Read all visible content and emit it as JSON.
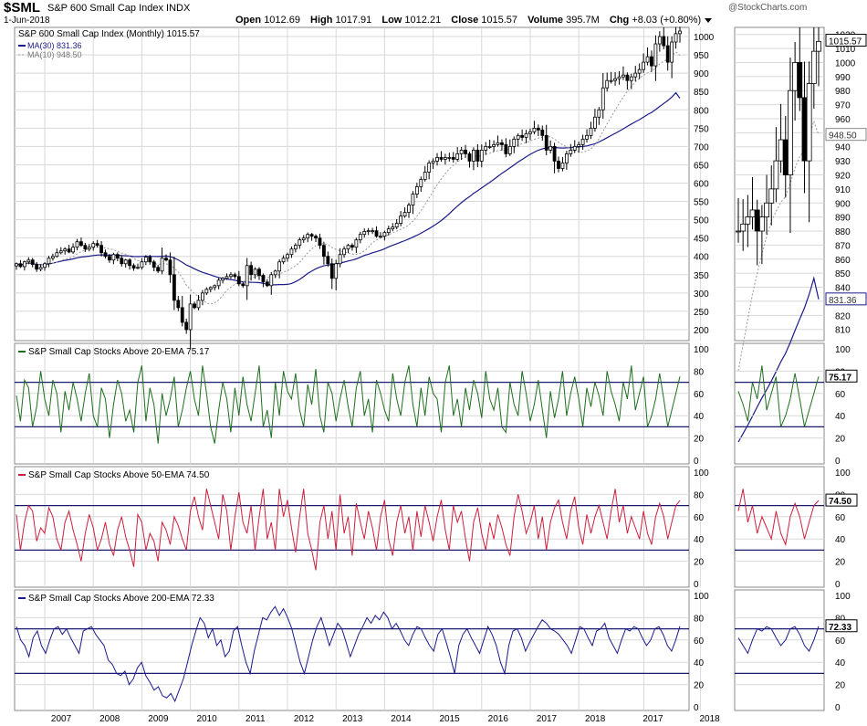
{
  "header": {
    "symbol": "$SML",
    "name": "S&P 600 Small Cap Index",
    "exchange": "INDX",
    "date": "1-Jun-2018",
    "watermark": "@StockCharts.com",
    "open_label": "Open",
    "open": "1012.69",
    "high_label": "High",
    "high": "1017.91",
    "low_label": "Low",
    "low": "1012.21",
    "close_label": "Close",
    "close": "1015.57",
    "volume_label": "Volume",
    "volume": "395.7M",
    "chg_label": "Chg",
    "chg": "+8.03 (+0.80%)"
  },
  "colors": {
    "candle": "#000000",
    "ma30": "#1a1a8c",
    "ma10": "#999999",
    "ema20": "#1e6e1e",
    "ema50": "#cc1f3d",
    "ema200": "#1a1a8c",
    "grid": "#d8d8d8",
    "ref": "#1a1a6e"
  },
  "panels": {
    "price": {
      "legend": [
        "S&P 600 Small Cap Index (Monthly) 1015.57",
        "MA(30) 831.36",
        "MA(10) 948.50"
      ],
      "last_label": "1015.57",
      "y_ticks": [
        "1000",
        "950",
        "900",
        "850",
        "800",
        "750",
        "700",
        "650",
        "600",
        "550",
        "500",
        "450",
        "400",
        "350",
        "300",
        "250",
        "200"
      ],
      "zoom_y_ticks": [
        "1020",
        "1010",
        "1000",
        "990",
        "980",
        "970",
        "960",
        "950",
        "940",
        "930",
        "920",
        "910",
        "900",
        "890",
        "880",
        "870",
        "860",
        "850",
        "840",
        "830",
        "820",
        "810"
      ],
      "zoom_tags": [
        "1015.57",
        "948.50",
        "831.36"
      ]
    },
    "ema20": {
      "legend": "S&P Small Cap Stocks Above 20-EMA 75.17",
      "last_label": "75.17"
    },
    "ema50": {
      "legend": "S&P Small Cap Stocks Above 50-EMA 74.50",
      "last_label": "74.50"
    },
    "ema200": {
      "legend": "S&P Small Cap Stocks Above 200-EMA 72.33",
      "last_label": "72.33"
    },
    "osc_ticks": [
      "100",
      "80",
      "60",
      "40",
      "20",
      "0"
    ]
  },
  "x_axis": {
    "main_years": [
      "2007",
      "2008",
      "2009",
      "2010",
      "2011",
      "2012",
      "2013",
      "2014",
      "2015",
      "2016",
      "2017",
      "2018"
    ],
    "zoom_years": [
      "2017",
      "2018"
    ]
  },
  "chart_data": [
    {
      "type": "candlestick",
      "title": "S&P 600 Small Cap Index (Monthly)",
      "x_start": "2006-06",
      "x_end": "2018-06",
      "interval": "monthly",
      "ylim": [
        170,
        1020
      ],
      "close": [
        380,
        372,
        385,
        390,
        378,
        365,
        370,
        380,
        395,
        400,
        410,
        415,
        420,
        412,
        425,
        440,
        430,
        420,
        425,
        435,
        430,
        410,
        400,
        390,
        405,
        395,
        380,
        390,
        375,
        368,
        370,
        385,
        398,
        385,
        370,
        360,
        395,
        390,
        350,
        280,
        260,
        220,
        200,
        270,
        260,
        280,
        300,
        310,
        315,
        320,
        335,
        340,
        345,
        350,
        345,
        325,
        320,
        375,
        350,
        365,
        348,
        330,
        320,
        350,
        360,
        385,
        395,
        405,
        420,
        430,
        445,
        450,
        460,
        455,
        450,
        430,
        400,
        380,
        340,
        380,
        405,
        420,
        430,
        425,
        445,
        460,
        468,
        470,
        470,
        455,
        455,
        465,
        475,
        480,
        490,
        510,
        520,
        540,
        570,
        590,
        610,
        630,
        655,
        660,
        670,
        665,
        670,
        670,
        665,
        680,
        690,
        680,
        660,
        690,
        660,
        690,
        700,
        700,
        705,
        710,
        705,
        680,
        700,
        720,
        730,
        725,
        735,
        740,
        750,
        745,
        730,
        690,
        700,
        660,
        640,
        655,
        680,
        690,
        700,
        705,
        720,
        730,
        750,
        780,
        800,
        860,
        880,
        880,
        885,
        890,
        895,
        880,
        890,
        900,
        910,
        930,
        945,
        920,
        980,
        1000,
        975,
        930,
        985,
        1008,
        1015
      ],
      "ma30_last": 831.36,
      "ma10_last": 948.5,
      "close_last": 1015.57,
      "note_values": {
        "2007_peak": 440,
        "2009_low": 200,
        "2011_peak": 460,
        "2016_low": 640,
        "2018_high": 1017.91
      }
    },
    {
      "type": "line",
      "title": "S&P Small Cap Stocks Above 20-EMA",
      "ylim": [
        0,
        100
      ],
      "reference_lines": [
        30,
        70
      ],
      "last": 75.17,
      "values": [
        58,
        35,
        72,
        65,
        30,
        48,
        80,
        55,
        40,
        72,
        60,
        25,
        62,
        45,
        70,
        55,
        35,
        60,
        78,
        40,
        30,
        65,
        55,
        20,
        50,
        72,
        60,
        35,
        45,
        25,
        70,
        85,
        35,
        65,
        50,
        15,
        60,
        40,
        55,
        75,
        30,
        45,
        65,
        80,
        55,
        40,
        85,
        60,
        30,
        15,
        45,
        70,
        55,
        25,
        65,
        40,
        75,
        50,
        35,
        60,
        85,
        30,
        45,
        20,
        70,
        40,
        80,
        62,
        55,
        78,
        45,
        30,
        68,
        50,
        82,
        40,
        25,
        70,
        60,
        35,
        55,
        72,
        48,
        30,
        65,
        80,
        40,
        55,
        25,
        72,
        60,
        45,
        35,
        78,
        55,
        40,
        70,
        85,
        50,
        30,
        65,
        40,
        75,
        60,
        55,
        25,
        70,
        85,
        40,
        55,
        30,
        65,
        45,
        72,
        60,
        38,
        80,
        55,
        45,
        65,
        30,
        25,
        70,
        50,
        40,
        80,
        60,
        35,
        50,
        72,
        45,
        20,
        62,
        38,
        55,
        80,
        40,
        60,
        75,
        55,
        30,
        65,
        48,
        70,
        58,
        40,
        80,
        62,
        50,
        35,
        70,
        55,
        85,
        45,
        60,
        75,
        30,
        40,
        55,
        78,
        55,
        30,
        45,
        60,
        75
      ]
    },
    {
      "type": "line",
      "title": "S&P Small Cap Stocks Above 50-EMA",
      "ylim": [
        0,
        100
      ],
      "reference_lines": [
        30,
        70
      ],
      "last": 74.5,
      "values": [
        62,
        30,
        55,
        70,
        65,
        38,
        50,
        45,
        68,
        60,
        40,
        30,
        55,
        65,
        48,
        35,
        20,
        45,
        62,
        50,
        30,
        40,
        55,
        35,
        25,
        48,
        60,
        42,
        30,
        15,
        62,
        55,
        30,
        45,
        38,
        20,
        55,
        48,
        35,
        60,
        52,
        40,
        30,
        65,
        78,
        60,
        48,
        85,
        70,
        55,
        40,
        80,
        65,
        30,
        60,
        82,
        55,
        45,
        70,
        30,
        60,
        85,
        40,
        55,
        30,
        85,
        60,
        75,
        50,
        28,
        60,
        85,
        45,
        30,
        12,
        55,
        70,
        40,
        65,
        30,
        80,
        45,
        60,
        25,
        72,
        55,
        40,
        65,
        50,
        30,
        60,
        75,
        40,
        25,
        55,
        70,
        45,
        60,
        30,
        65,
        42,
        70,
        55,
        38,
        60,
        75,
        48,
        30,
        70,
        55,
        65,
        40,
        20,
        55,
        68,
        45,
        30,
        55,
        40,
        62,
        50,
        35,
        25,
        60,
        80,
        65,
        45,
        55,
        70,
        40,
        60,
        30,
        55,
        68,
        75,
        55,
        40,
        65,
        78,
        50,
        35,
        62,
        45,
        60,
        70,
        55,
        40,
        65,
        85,
        55,
        70,
        45,
        60,
        50,
        40,
        65,
        45,
        35,
        60,
        72,
        60,
        40,
        55,
        70,
        74
      ]
    },
    {
      "type": "line",
      "title": "S&P Small Cap Stocks Above 200-EMA",
      "ylim": [
        0,
        100
      ],
      "reference_lines": [
        30,
        70
      ],
      "last": 72.33,
      "values": [
        72,
        60,
        55,
        45,
        62,
        68,
        55,
        48,
        60,
        70,
        72,
        65,
        70,
        62,
        55,
        48,
        68,
        70,
        72,
        65,
        60,
        55,
        42,
        38,
        30,
        28,
        32,
        20,
        25,
        35,
        40,
        28,
        22,
        15,
        18,
        10,
        8,
        12,
        5,
        15,
        25,
        40,
        55,
        68,
        80,
        75,
        62,
        70,
        55,
        60,
        45,
        50,
        68,
        72,
        55,
        40,
        30,
        50,
        65,
        80,
        78,
        85,
        90,
        82,
        88,
        80,
        70,
        55,
        40,
        30,
        45,
        60,
        72,
        80,
        68,
        55,
        65,
        75,
        70,
        58,
        45,
        55,
        65,
        72,
        80,
        75,
        82,
        78,
        85,
        80,
        70,
        75,
        68,
        60,
        55,
        65,
        72,
        70,
        62,
        55,
        50,
        65,
        70,
        58,
        45,
        30,
        55,
        65,
        70,
        62,
        55,
        48,
        60,
        72,
        65,
        55,
        40,
        30,
        55,
        68,
        70,
        62,
        50,
        58,
        65,
        72,
        78,
        75,
        70,
        68,
        65,
        60,
        55,
        48,
        60,
        72,
        70,
        62,
        55,
        68,
        70,
        75,
        62,
        55,
        48,
        60,
        70,
        68,
        72,
        70,
        62,
        55,
        60,
        70,
        72,
        65,
        55,
        50,
        60,
        72
      ]
    }
  ]
}
